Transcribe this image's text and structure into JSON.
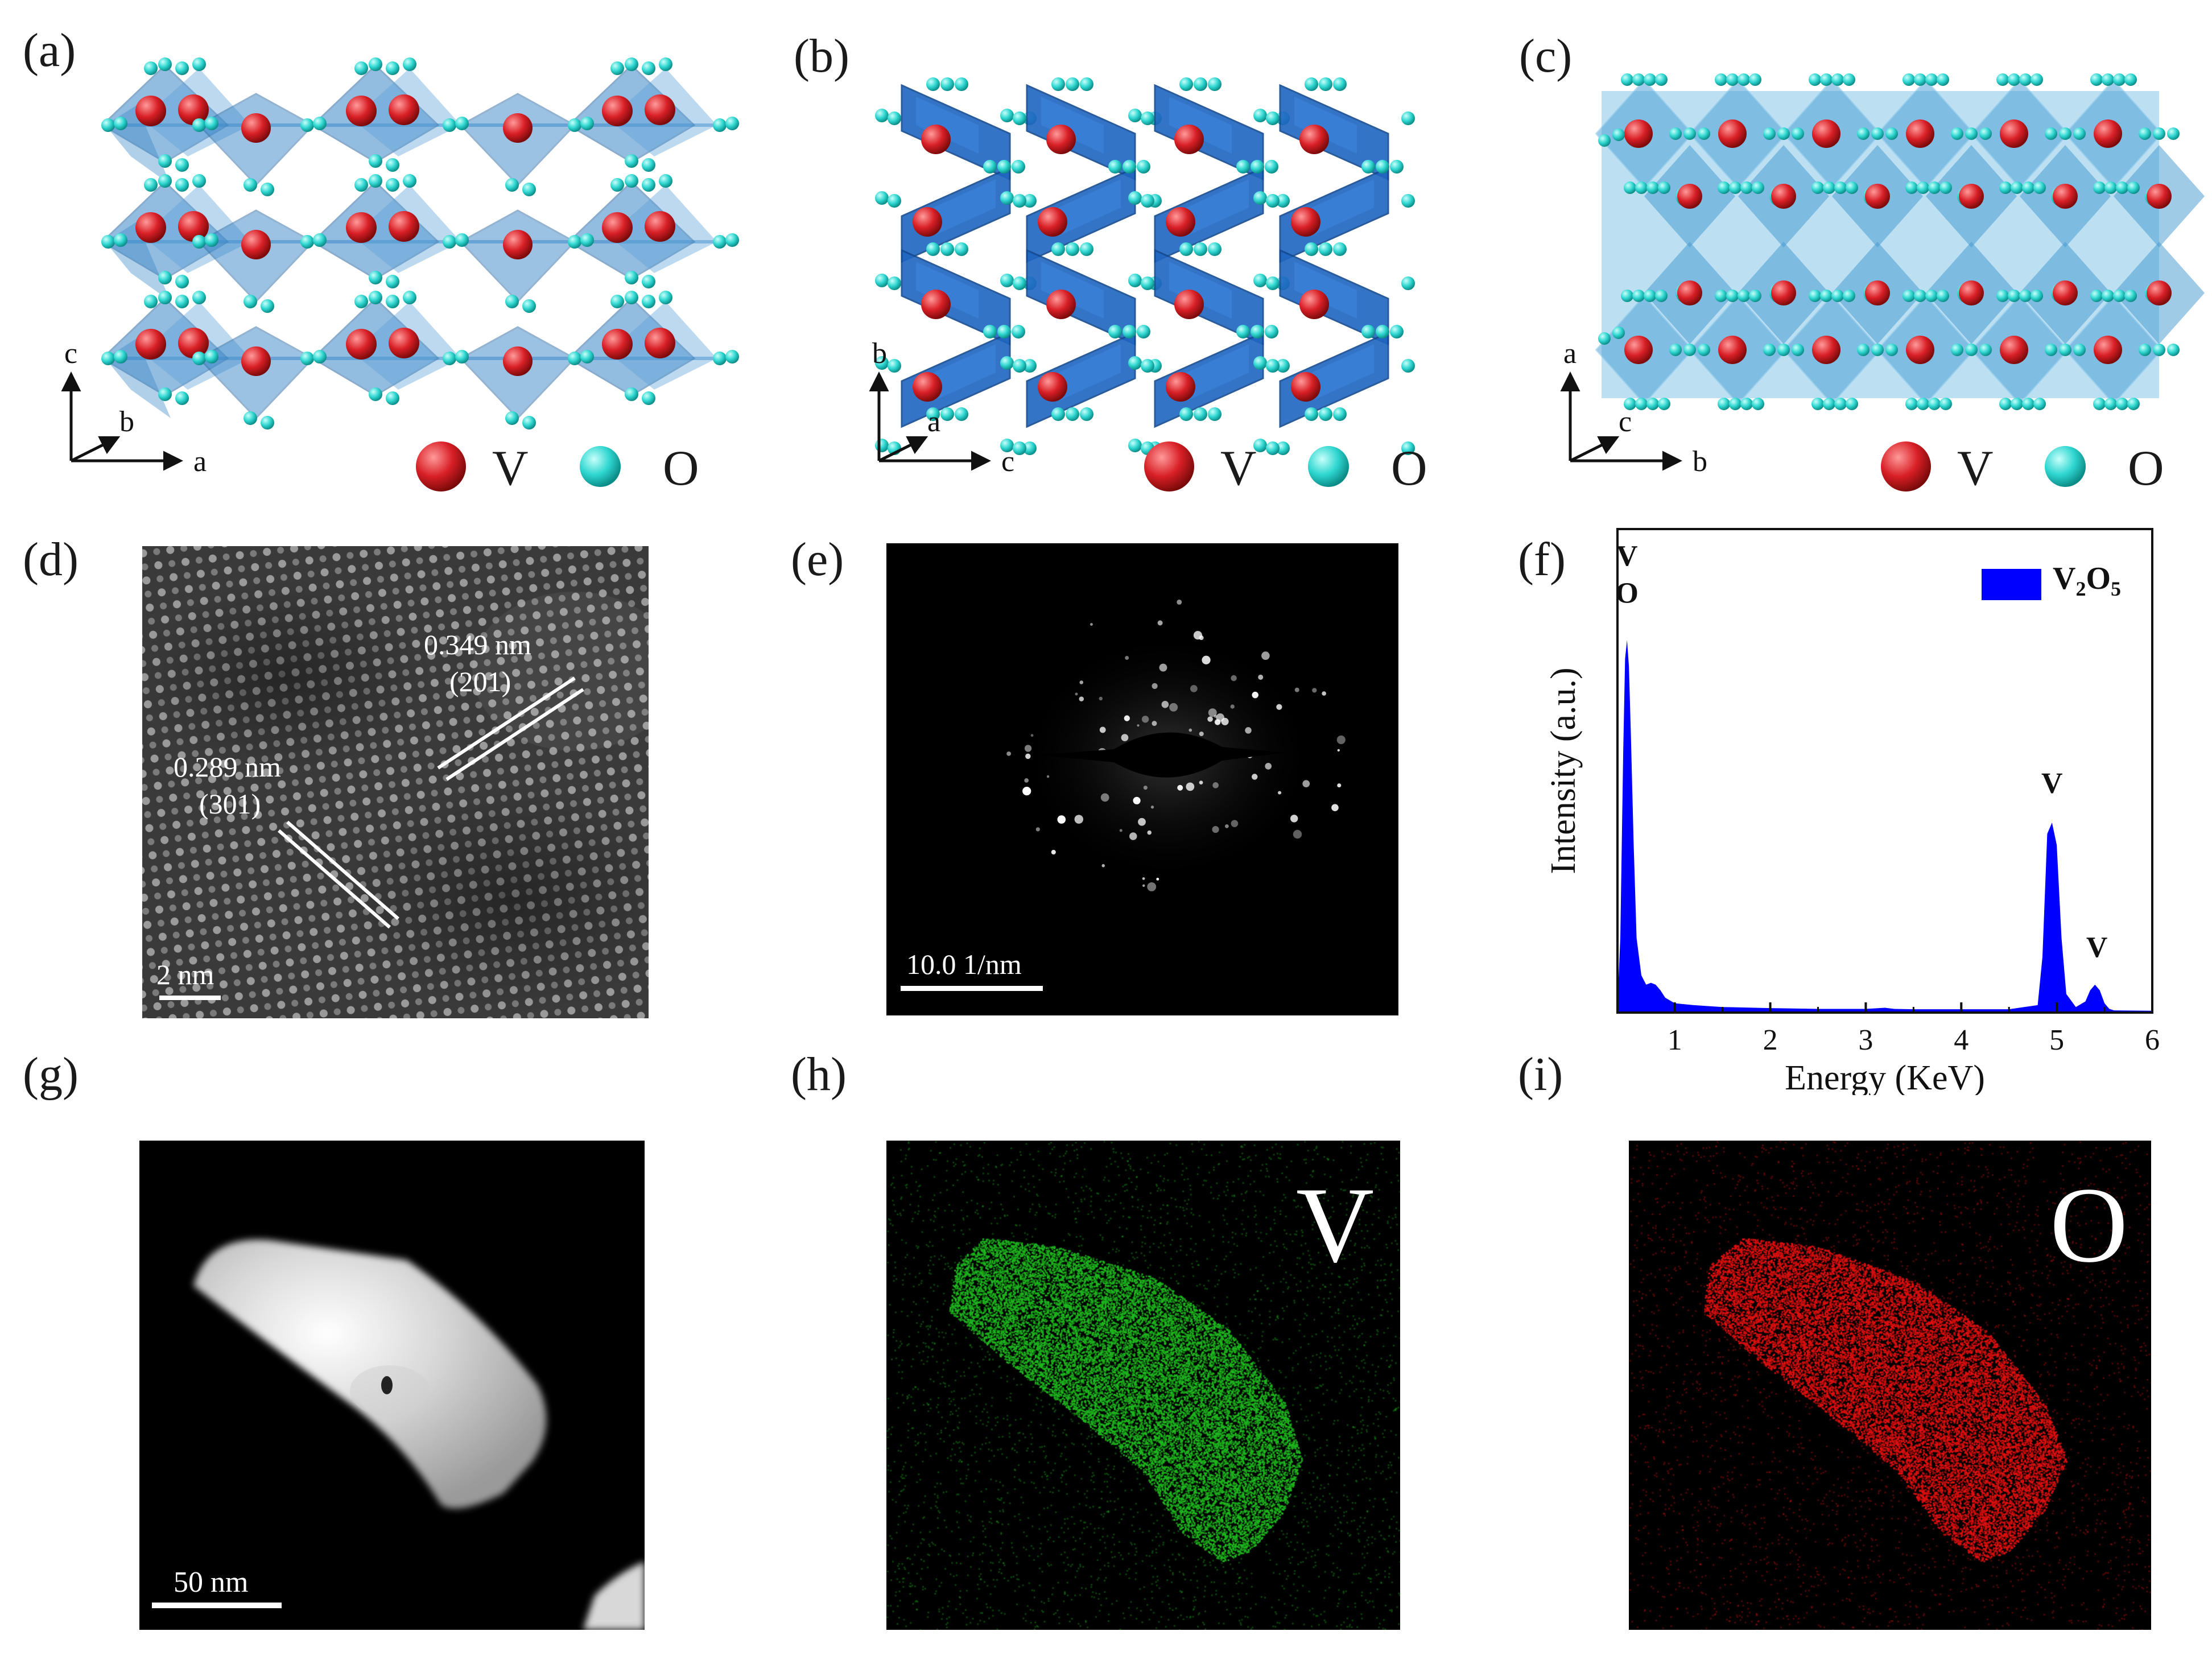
{
  "panels": {
    "a": {
      "label": "(a)",
      "axes": {
        "vertical": "c",
        "depth": "b",
        "horizontal": "a"
      }
    },
    "b": {
      "label": "(b)",
      "axes": {
        "vertical": "b",
        "depth": "a",
        "horizontal": "c"
      }
    },
    "c": {
      "label": "(c)",
      "axes": {
        "vertical": "a",
        "depth": "c",
        "horizontal": "b"
      }
    },
    "d": {
      "label": "(d)",
      "spacing1": "0.349 nm",
      "plane1": "(201)",
      "spacing2": "0.289 nm",
      "plane2": "(301)",
      "scalebar": "2 nm"
    },
    "e": {
      "label": "(e)",
      "scalebar": "10.0 1/nm"
    },
    "f": {
      "label": "(f)"
    },
    "g": {
      "label": "(g)",
      "scalebar": "50 nm"
    },
    "h": {
      "label": "(h)",
      "element": "V"
    },
    "i": {
      "label": "(i)",
      "element": "O"
    }
  },
  "legend": {
    "v_label": "V",
    "o_label": "O"
  },
  "colors": {
    "vanadium": "#d81f26",
    "oxygen": "#2fd6d0",
    "polyhedra": "#3a86c8",
    "eds": "#0000ff",
    "v_map": "#1fb81f",
    "o_map": "#e01010"
  },
  "chart_data": {
    "type": "area",
    "xlabel": "Energy (KeV)",
    "ylabel": "Intensity (a.u.)",
    "xlim": [
      0.4,
      6
    ],
    "xticks": [
      "1",
      "2",
      "3",
      "4",
      "5",
      "6"
    ],
    "legend": "V₂O₅",
    "legend_main": "V",
    "legend_sub1": "2",
    "legend_mid": "O",
    "legend_sub2": "5",
    "series": [
      {
        "name": "V₂O₅",
        "color": "#0000ff",
        "x": [
          0.4,
          0.43,
          0.46,
          0.48,
          0.5,
          0.52,
          0.54,
          0.57,
          0.6,
          0.65,
          0.7,
          0.75,
          0.8,
          0.85,
          0.9,
          1.0,
          1.2,
          1.5,
          2.0,
          2.5,
          3.0,
          3.2,
          3.3,
          3.5,
          4.0,
          4.5,
          4.8,
          4.85,
          4.9,
          4.95,
          5.0,
          5.05,
          5.1,
          5.2,
          5.3,
          5.35,
          5.4,
          5.45,
          5.5,
          5.55,
          5.6,
          6.0
        ],
        "y": [
          0.02,
          0.2,
          0.7,
          0.95,
          1.0,
          0.93,
          0.75,
          0.45,
          0.2,
          0.1,
          0.075,
          0.08,
          0.075,
          0.06,
          0.04,
          0.025,
          0.02,
          0.015,
          0.012,
          0.01,
          0.01,
          0.013,
          0.01,
          0.009,
          0.009,
          0.009,
          0.02,
          0.15,
          0.48,
          0.51,
          0.45,
          0.2,
          0.05,
          0.015,
          0.03,
          0.06,
          0.075,
          0.06,
          0.025,
          0.01,
          0.006,
          0.005
        ]
      }
    ],
    "peak_labels": [
      {
        "text": "V",
        "x": 0.5,
        "y": 1.2
      },
      {
        "text": "O",
        "x": 0.5,
        "y": 1.1
      },
      {
        "text": "V",
        "x": 4.95,
        "y": 0.59
      },
      {
        "text": "V",
        "x": 5.42,
        "y": 0.15
      }
    ]
  }
}
